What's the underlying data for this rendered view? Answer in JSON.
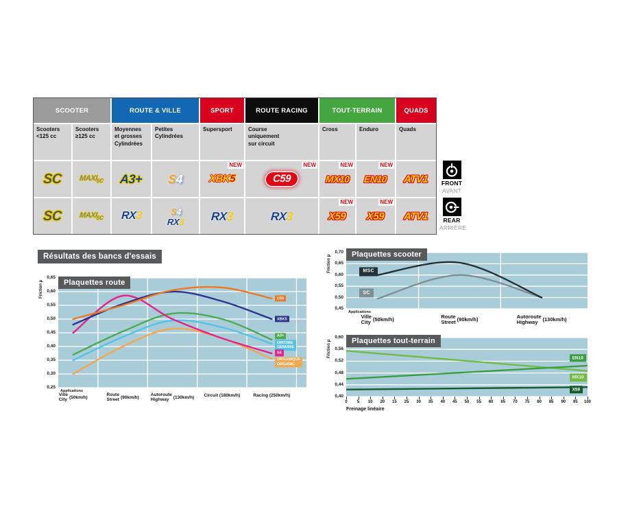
{
  "page": {
    "plot_bg": "#a9ccd9",
    "panel_color": "#58595b"
  },
  "labels": {
    "new": "NEW",
    "results_title": "Résultats des bancs d'essais"
  },
  "table": {
    "groups": [
      {
        "label": "SCOOTER",
        "color": "#9b9b9b",
        "span": 2
      },
      {
        "label": "ROUTE & VILLE",
        "color": "#1268b3",
        "span": 2
      },
      {
        "label": "SPORT",
        "color": "#d8001e",
        "span": 1
      },
      {
        "label": "ROUTE RACING",
        "color": "#0c0c0c",
        "span": 1
      },
      {
        "label": "TOUT-TERRAIN",
        "color": "#44a63f",
        "span": 2
      },
      {
        "label": "QUADS",
        "color": "#d8001e",
        "span": 1
      }
    ],
    "subheaders": [
      "Scooters\n<125 cc",
      "Scooters\n≥125 cc",
      "Moyennes\net grosses\nCylindrées",
      "Petites\nCylindrées",
      "Supersport",
      "Course\nuniquement\nsur circuit",
      "Cross",
      "Enduro",
      "Quads"
    ],
    "products": {
      "sc": "SC",
      "maxi": "MAXI",
      "maxi_sub": "SC",
      "a3": "A3+",
      "s4_s": "S",
      "s4_4": "4",
      "xbk": "XBK",
      "xbk5": "5",
      "c59": "C59",
      "mx10": "MX10",
      "en10": "EN10",
      "atv1": "ATV1",
      "rx": "RX",
      "rx3": "3",
      "x59": "X59"
    },
    "front_label": "FRONT",
    "front_sub": "AVANT",
    "rear_label": "REAR",
    "rear_sub": "ARRIÈRE"
  },
  "chart_data": [
    {
      "id": "route",
      "type": "line",
      "title": "Plaquettes route",
      "ylabel": "Friction µ",
      "x_note": "Applications",
      "ylim": [
        0.25,
        0.65
      ],
      "yticks": [
        0.65,
        0.6,
        0.55,
        0.5,
        0.45,
        0.4,
        0.35,
        0.3,
        0.25
      ],
      "vgrid": [
        0.16,
        0.36,
        0.56,
        0.76,
        0.96
      ],
      "x_centers": [
        0.06,
        0.26,
        0.46,
        0.66,
        0.86
      ],
      "label_size": "sm",
      "cat_size": "sm",
      "categories": [
        {
          "top": "Ville",
          "bottom": "City",
          "speed": "(50km/h)"
        },
        {
          "top": "Route",
          "bottom": "Street",
          "speed": "(90km/h)"
        },
        {
          "top": "Autoroute",
          "bottom": "Highway",
          "speed": "(130km/h)"
        },
        {
          "single": "Circuit (180km/h)"
        },
        {
          "single": "Racing (250km/h)"
        }
      ],
      "series": [
        {
          "name": "ORGANIQUE ORGANIC",
          "label": "ORGANIQUE\nORGANIC",
          "color": "#f3a74f",
          "values": [
            0.3,
            0.4,
            0.465,
            0.43,
            0.355
          ],
          "label_pos": [
            0.873,
            0.343
          ]
        },
        {
          "name": "ORIGINE GENUINE",
          "label": "ORIGINE\nGENUINE",
          "color": "#55c3e7",
          "values": [
            0.35,
            0.435,
            0.495,
            0.47,
            0.41
          ],
          "label_pos": [
            0.873,
            0.405
          ]
        },
        {
          "name": "A3+",
          "label": "A3+",
          "color": "#4cab51",
          "values": [
            0.37,
            0.455,
            0.52,
            0.5,
            0.425
          ],
          "label_pos": [
            0.873,
            0.438
          ]
        },
        {
          "name": "S4",
          "label": "S4",
          "color": "#e72289",
          "values": [
            0.45,
            0.585,
            0.5,
            0.43,
            0.375
          ],
          "label_pos": [
            0.873,
            0.377
          ]
        },
        {
          "name": "XBK5",
          "label": "XBK5",
          "color": "#2c3490",
          "values": [
            0.48,
            0.555,
            0.6,
            0.565,
            0.5
          ],
          "label_pos": [
            0.873,
            0.5
          ]
        },
        {
          "name": "C59",
          "label": "C59",
          "color": "#ec7a23",
          "values": [
            0.5,
            0.55,
            0.605,
            0.615,
            0.575
          ],
          "label_pos": [
            0.873,
            0.575
          ]
        }
      ]
    },
    {
      "id": "scooter",
      "type": "line",
      "title": "Plaquettes scooter",
      "ylabel": "Friction µ",
      "x_note": "Applications",
      "ylim": [
        0.45,
        0.7
      ],
      "yticks": [
        0.7,
        0.65,
        0.6,
        0.55,
        0.5,
        0.45
      ],
      "vgrid": [
        0.3,
        0.64
      ],
      "x_centers": [
        0.13,
        0.47,
        0.81
      ],
      "label_size": "lg",
      "cat_size": "lg",
      "categories": [
        {
          "top": "Ville",
          "bottom": "City",
          "speed": "(50km/h)"
        },
        {
          "top": "Route",
          "bottom": "Street",
          "speed": "(90km/h)"
        },
        {
          "top": "Autoroute",
          "bottom": "Highway",
          "speed": "(130km/h)"
        }
      ],
      "series": [
        {
          "name": "SC",
          "label": "SC",
          "color": "#7e8e95",
          "values": [
            0.495,
            0.6,
            0.5
          ],
          "label_pos": [
            0.055,
            0.52
          ]
        },
        {
          "name": "MSC",
          "label": "MSC",
          "color": "#243239",
          "values": [
            0.6,
            0.655,
            0.5
          ],
          "label_pos": [
            0.055,
            0.615
          ]
        }
      ]
    },
    {
      "id": "terrain",
      "type": "line",
      "title": "Plaquettes tout-terrain",
      "ylabel": "Friction µ",
      "xlabel": "Freinage linéaire",
      "ylim": [
        0.4,
        0.6
      ],
      "yticks": [
        0.6,
        0.56,
        0.52,
        0.48,
        0.44,
        0.4
      ],
      "xticks": [
        "0",
        "5",
        "10",
        "20",
        "15",
        "25",
        "30",
        "35",
        "40",
        "45",
        "50",
        "55",
        "60",
        "65",
        "70",
        "75",
        "80",
        "85",
        "90",
        "95",
        "100"
      ],
      "label_size": "md",
      "series": [
        {
          "name": "MX10",
          "label": "MX10",
          "color": "#72bb44",
          "x_fracs": [
            0,
            1
          ],
          "values": [
            0.555,
            0.487
          ],
          "straight": true,
          "label_pos": [
            0.925,
            0.464
          ]
        },
        {
          "name": "EN10",
          "label": "EN10",
          "color": "#3a9e43",
          "x_fracs": [
            0,
            1
          ],
          "values": [
            0.46,
            0.505
          ],
          "straight": true,
          "label_pos": [
            0.925,
            0.531
          ]
        },
        {
          "name": "X59",
          "label": "X59",
          "color": "#155b2e",
          "x_fracs": [
            0,
            1
          ],
          "values": [
            0.424,
            0.432
          ],
          "straight": true,
          "label_pos": [
            0.925,
            0.424
          ]
        }
      ]
    }
  ]
}
